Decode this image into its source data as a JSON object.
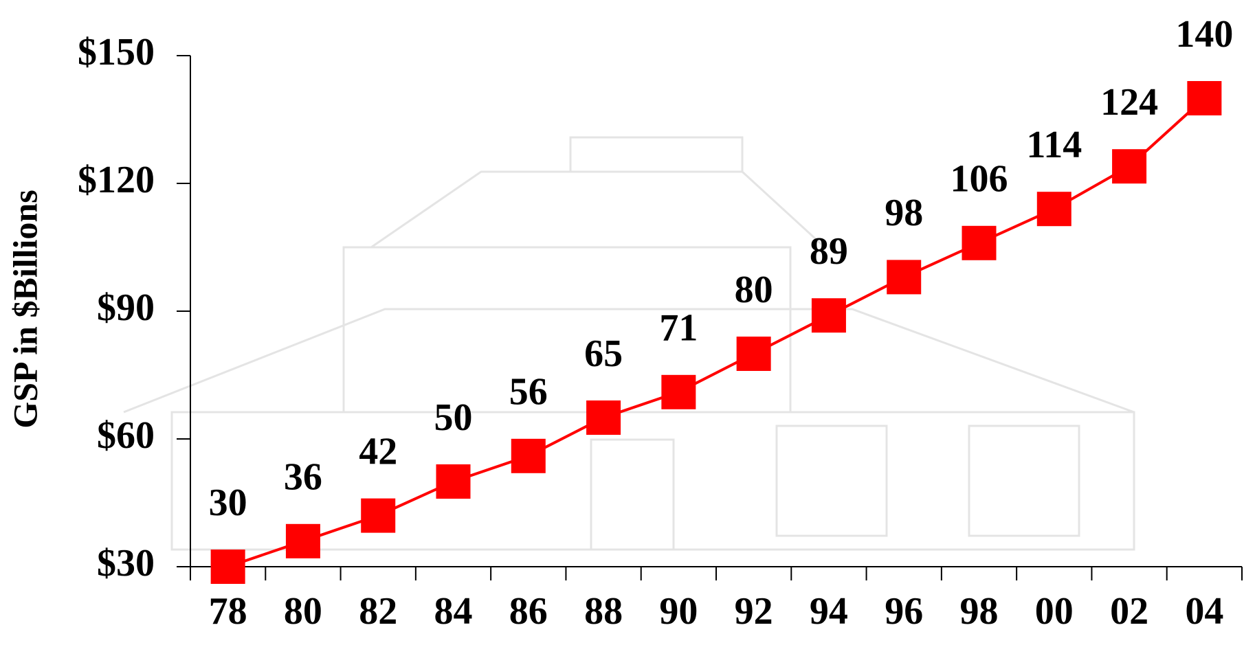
{
  "chart_data": {
    "type": "line",
    "y_label": "GSP in $Billions",
    "categories": [
      "78",
      "80",
      "82",
      "84",
      "86",
      "88",
      "90",
      "92",
      "94",
      "96",
      "98",
      "00",
      "02",
      "04"
    ],
    "values": [
      30,
      36,
      42,
      50,
      56,
      65,
      71,
      80,
      89,
      98,
      106,
      114,
      124,
      140
    ],
    "color": "#ff0000",
    "marker": "square",
    "ylim": [
      30,
      150
    ],
    "yticks": [
      {
        "value": 30,
        "label": "$30"
      },
      {
        "value": 60,
        "label": "$60"
      },
      {
        "value": 90,
        "label": "$90"
      },
      {
        "value": 120,
        "label": "$120"
      },
      {
        "value": 150,
        "label": "$150"
      }
    ]
  }
}
